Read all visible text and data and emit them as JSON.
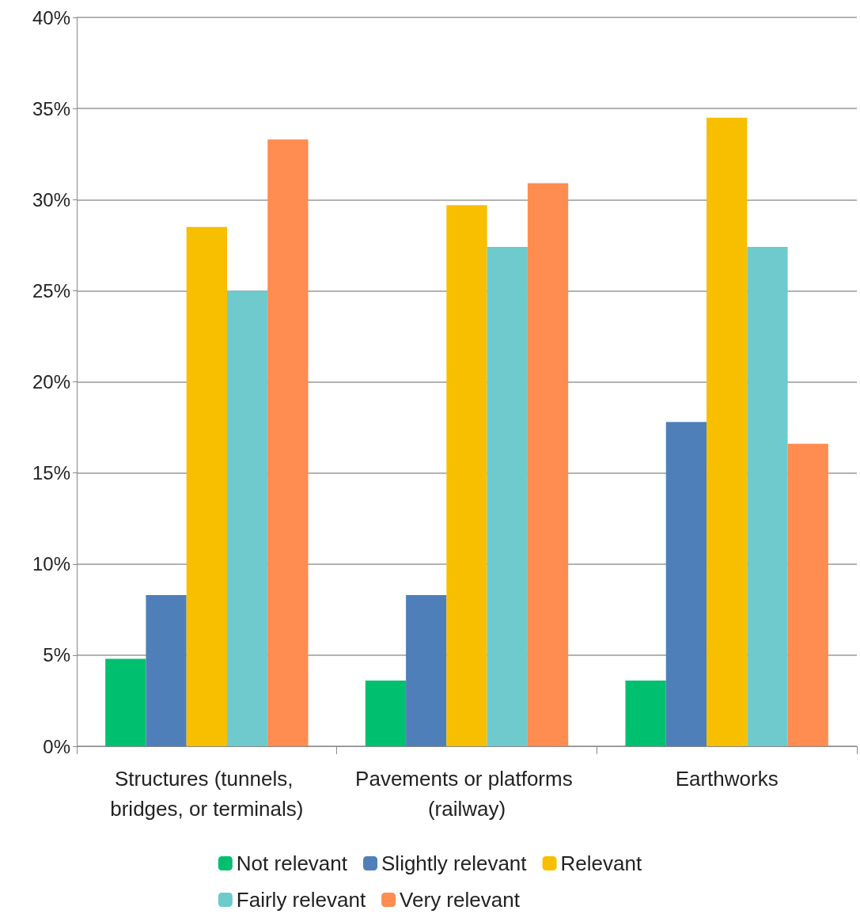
{
  "chart_data": {
    "type": "bar",
    "categories": [
      "Structures (tunnels, bridges, or terminals)",
      "Pavements or platforms (railway)",
      "Earthworks"
    ],
    "series": [
      {
        "name": "Not relevant",
        "color": "#00c070",
        "values": [
          4.8,
          3.6,
          3.6
        ]
      },
      {
        "name": "Slightly relevant",
        "color": "#4f7fb8",
        "values": [
          8.3,
          8.3,
          17.8
        ]
      },
      {
        "name": "Relevant",
        "color": "#f7bf00",
        "values": [
          28.5,
          29.7,
          34.5
        ]
      },
      {
        "name": "Fairly relevant",
        "color": "#6ecacc",
        "values": [
          25.0,
          27.4,
          27.4
        ]
      },
      {
        "name": "Very relevant",
        "color": "#ff8c50",
        "values": [
          33.3,
          30.9,
          16.6
        ]
      }
    ],
    "ylim": [
      0,
      40
    ],
    "yticks": [
      {
        "value": 0,
        "label": "0%"
      },
      {
        "value": 5,
        "label": "5%"
      },
      {
        "value": 10,
        "label": "10%"
      },
      {
        "value": 15,
        "label": "15%"
      },
      {
        "value": 20,
        "label": "20%"
      },
      {
        "value": 25,
        "label": "25%"
      },
      {
        "value": 30,
        "label": "30%"
      },
      {
        "value": 35,
        "label": "35%"
      },
      {
        "value": 40,
        "label": "40%"
      }
    ],
    "grid": "y",
    "legend": "bottom"
  }
}
